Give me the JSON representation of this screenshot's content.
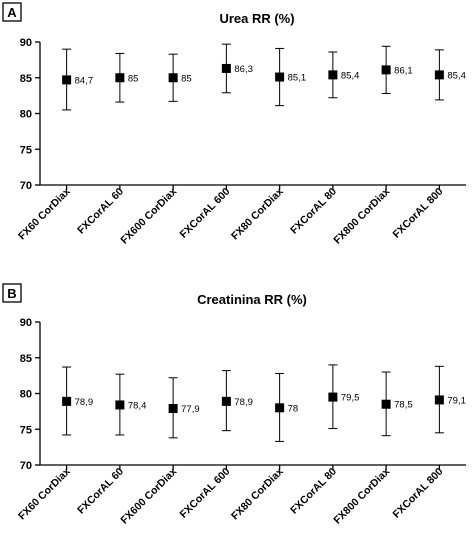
{
  "chart_data": [
    {
      "type": "scatter",
      "panel_label": "A",
      "title": "Urea RR (%)",
      "categories": [
        "FX60 CorDiax",
        "FXCorAL 60",
        "FX600 CorDiax",
        "FXCorAL 600",
        "FX80 CorDiax",
        "FXCorAL 80",
        "FX800 CorDiax",
        "FXCorAL 800"
      ],
      "values": [
        84.7,
        85,
        85,
        86.3,
        85.1,
        85.4,
        86.1,
        85.4
      ],
      "value_labels": [
        "84,7",
        "85",
        "85",
        "86,3",
        "85,1",
        "85,4",
        "86,1",
        "85,4"
      ],
      "error_low": [
        80.5,
        81.6,
        81.7,
        82.9,
        81.1,
        82.2,
        82.8,
        81.9
      ],
      "error_high": [
        89,
        88.4,
        88.3,
        89.7,
        89.1,
        88.6,
        89.4,
        88.9
      ],
      "ylim": [
        70,
        90
      ],
      "yticks": [
        "70",
        "75",
        "80",
        "85",
        "90"
      ],
      "xlabel": "",
      "ylabel": "",
      "grid": false
    },
    {
      "type": "scatter",
      "panel_label": "B",
      "title": "Creatinina RR (%)",
      "categories": [
        "FX60 CorDiax",
        "FXCorAL 60",
        "FX600 CorDiax",
        "FXCorAL 600",
        "FX80 CorDiax",
        "FXCorAL 80",
        "FX800 CorDiax",
        "FXCorAL 800"
      ],
      "values": [
        78.9,
        78.4,
        77.9,
        78.9,
        78,
        79.5,
        78.5,
        79.1
      ],
      "value_labels": [
        "78,9",
        "78,4",
        "77,9",
        "78,9",
        "78",
        "79,5",
        "78,5",
        "79,1"
      ],
      "error_low": [
        74.2,
        74.2,
        73.8,
        74.8,
        73.3,
        75.1,
        74.1,
        74.5
      ],
      "error_high": [
        83.7,
        82.7,
        82.2,
        83.2,
        82.8,
        84,
        83,
        83.8
      ],
      "ylim": [
        70,
        90
      ],
      "yticks": [
        "70",
        "75",
        "80",
        "85",
        "90"
      ],
      "xlabel": "",
      "ylabel": "",
      "grid": false
    }
  ]
}
